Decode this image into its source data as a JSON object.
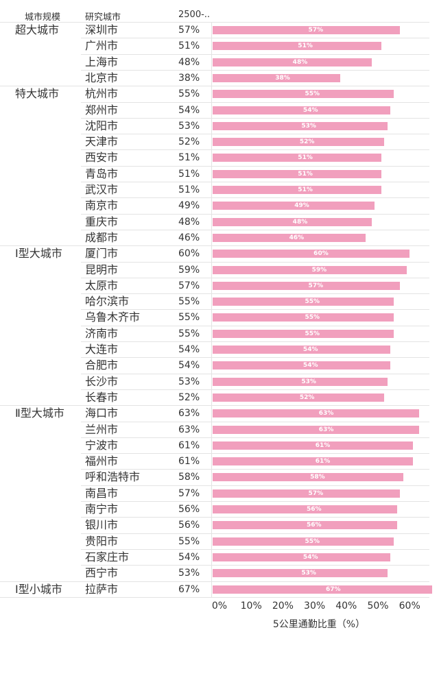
{
  "header": {
    "col_group": "城市规模",
    "col_city": "研究城市",
    "col_value": "2500-.."
  },
  "colors": {
    "bar": "#f19fbd",
    "label": "#ffffff",
    "grid": "#e3e3e3"
  },
  "chart_data": {
    "type": "bar",
    "orientation": "horizontal",
    "xlabel": "5公里通勤比重（%）",
    "xlim": [
      0,
      70
    ],
    "x_ticks": [
      "0%",
      "10%",
      "20%",
      "30%",
      "40%",
      "50%",
      "60%"
    ],
    "groups": [
      {
        "name": "超大城市",
        "cities": [
          {
            "name": "深圳市",
            "value": 57,
            "label": "57%"
          },
          {
            "name": "广州市",
            "value": 51,
            "label": "51%"
          },
          {
            "name": "上海市",
            "value": 48,
            "label": "48%"
          },
          {
            "name": "北京市",
            "value": 38,
            "label": "38%"
          }
        ]
      },
      {
        "name": "特大城市",
        "cities": [
          {
            "name": "杭州市",
            "value": 55,
            "label": "55%"
          },
          {
            "name": "郑州市",
            "value": 54,
            "label": "54%"
          },
          {
            "name": "沈阳市",
            "value": 53,
            "label": "53%"
          },
          {
            "name": "天津市",
            "value": 52,
            "label": "52%"
          },
          {
            "name": "西安市",
            "value": 51,
            "label": "51%"
          },
          {
            "name": "青岛市",
            "value": 51,
            "label": "51%"
          },
          {
            "name": "武汉市",
            "value": 51,
            "label": "51%"
          },
          {
            "name": "南京市",
            "value": 49,
            "label": "49%"
          },
          {
            "name": "重庆市",
            "value": 48,
            "label": "48%"
          },
          {
            "name": "成都市",
            "value": 46,
            "label": "46%"
          }
        ]
      },
      {
        "name": "Ⅰ型大城市",
        "cities": [
          {
            "name": "厦门市",
            "value": 60,
            "label": "60%"
          },
          {
            "name": "昆明市",
            "value": 59,
            "label": "59%"
          },
          {
            "name": "太原市",
            "value": 57,
            "label": "57%"
          },
          {
            "name": "哈尔滨市",
            "value": 55,
            "label": "55%"
          },
          {
            "name": "乌鲁木齐市",
            "value": 55,
            "label": "55%"
          },
          {
            "name": "济南市",
            "value": 55,
            "label": "55%"
          },
          {
            "name": "大连市",
            "value": 54,
            "label": "54%"
          },
          {
            "name": "合肥市",
            "value": 54,
            "label": "54%"
          },
          {
            "name": "长沙市",
            "value": 53,
            "label": "53%"
          },
          {
            "name": "长春市",
            "value": 52,
            "label": "52%"
          }
        ]
      },
      {
        "name": "Ⅱ型大城市",
        "cities": [
          {
            "name": "海口市",
            "value": 63,
            "label": "63%"
          },
          {
            "name": "兰州市",
            "value": 63,
            "label": "63%"
          },
          {
            "name": "宁波市",
            "value": 61,
            "label": "61%"
          },
          {
            "name": "福州市",
            "value": 61,
            "label": "61%"
          },
          {
            "name": "呼和浩特市",
            "value": 58,
            "label": "58%"
          },
          {
            "name": "南昌市",
            "value": 57,
            "label": "57%"
          },
          {
            "name": "南宁市",
            "value": 56,
            "label": "56%"
          },
          {
            "name": "银川市",
            "value": 56,
            "label": "56%"
          },
          {
            "name": "贵阳市",
            "value": 55,
            "label": "55%"
          },
          {
            "name": "石家庄市",
            "value": 54,
            "label": "54%"
          },
          {
            "name": "西宁市",
            "value": 53,
            "label": "53%"
          }
        ]
      },
      {
        "name": "Ⅰ型小城市",
        "cities": [
          {
            "name": "拉萨市",
            "value": 67,
            "label": "67%"
          }
        ]
      }
    ]
  }
}
